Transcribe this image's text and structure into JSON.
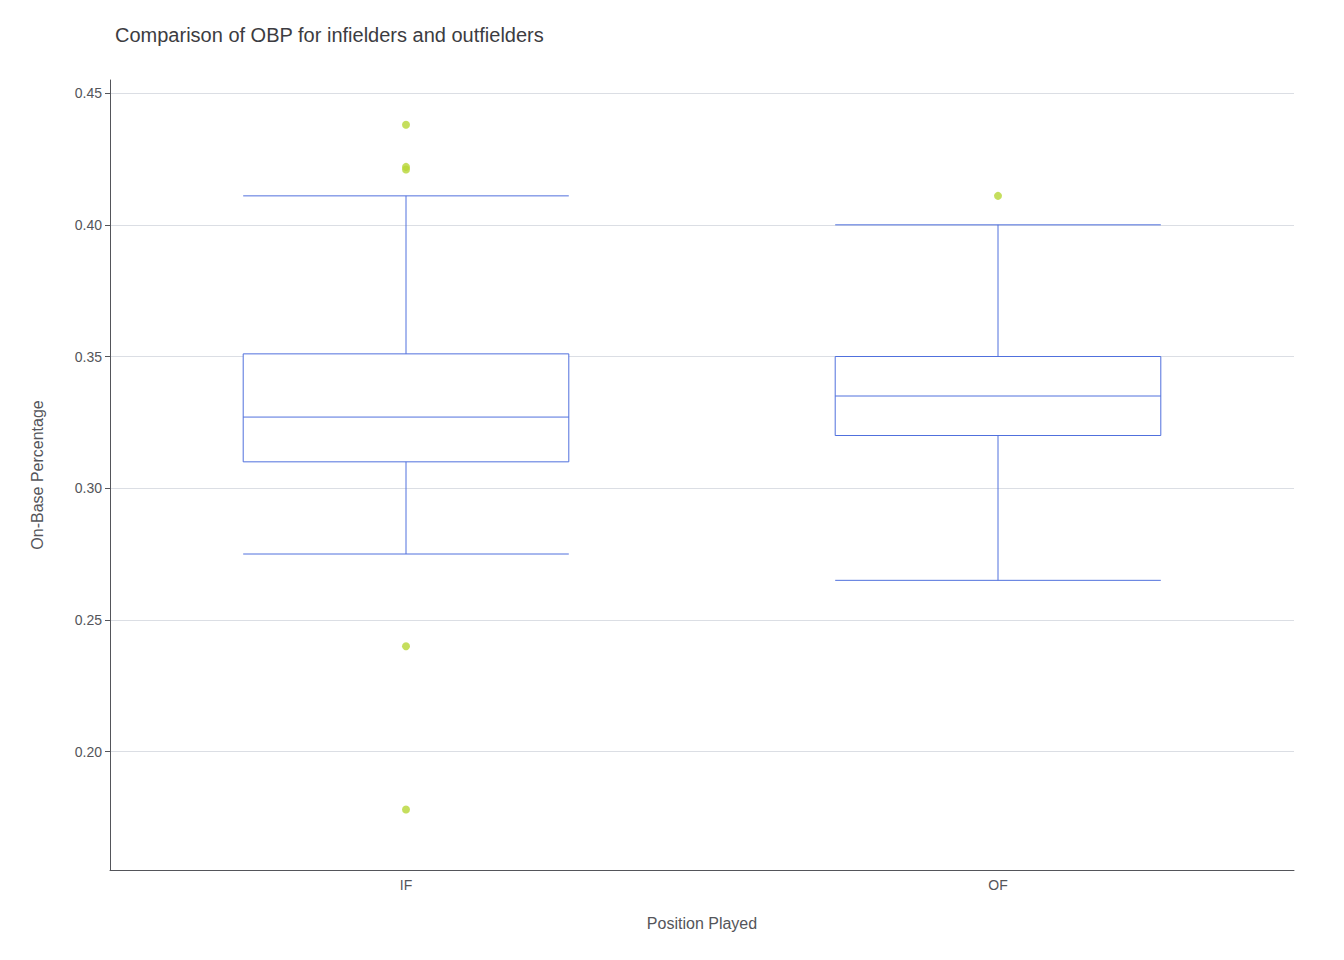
{
  "chart_data": {
    "type": "boxplot",
    "title": "Comparison of OBP for infielders and outfielders",
    "xlabel": "Position Played",
    "ylabel": "On-Base Percentage",
    "categories": [
      "IF",
      "OF"
    ],
    "boxes": [
      {
        "q1": 0.31,
        "median": 0.327,
        "q3": 0.351,
        "whisker_low": 0.275,
        "whisker_high": 0.411,
        "outliers": [
          0.178,
          0.24,
          0.421,
          0.422,
          0.438
        ]
      },
      {
        "q1": 0.32,
        "median": 0.335,
        "q3": 0.35,
        "whisker_low": 0.265,
        "whisker_high": 0.4,
        "outliers": [
          0.411
        ]
      }
    ],
    "ylim": [
      0.155,
      0.455
    ],
    "yticks": [
      {
        "value": 0.2,
        "label": "0.20"
      },
      0.25,
      {
        "value": 0.3,
        "label": "0.30"
      },
      0.35,
      {
        "value": 0.4,
        "label": "0.40"
      },
      0.45
    ],
    "grid": true
  }
}
